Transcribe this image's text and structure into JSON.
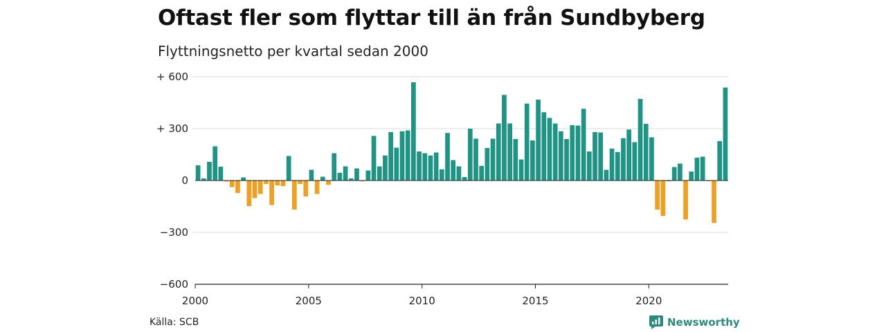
{
  "title": "Oftast fler som flyttar till än från Sundbyberg",
  "subtitle": "Flyttningsnetto per kvartal sedan 2000",
  "source": "Källa: SCB",
  "brand": "Newsworthy",
  "colors": {
    "positive": "#1e9484",
    "negative": "#f0a021",
    "grid": "#d9d9d9",
    "axis": "#222222",
    "brand": "#2a8c7e"
  },
  "chart_data": {
    "type": "bar",
    "ylim": [
      -600,
      600
    ],
    "y_ticks": [
      {
        "value": 600,
        "label": "+ 600"
      },
      {
        "value": 300,
        "label": "+ 300"
      },
      {
        "value": 0,
        "label": "0"
      },
      {
        "value": -300,
        "label": "−300"
      },
      {
        "value": -600,
        "label": "−600"
      }
    ],
    "x_ticks": [
      "2000",
      "2005",
      "2010",
      "2015",
      "2020"
    ],
    "start_year": 2000,
    "values": [
      88,
      12,
      108,
      198,
      80,
      -6,
      -38,
      -72,
      18,
      -148,
      -102,
      -78,
      -20,
      -142,
      -28,
      -32,
      142,
      -168,
      -20,
      -92,
      62,
      -78,
      22,
      -25,
      158,
      45,
      82,
      12,
      70,
      -5,
      58,
      258,
      82,
      145,
      280,
      190,
      285,
      290,
      568,
      168,
      158,
      145,
      162,
      65,
      275,
      118,
      82,
      20,
      300,
      242,
      85,
      188,
      242,
      330,
      495,
      330,
      240,
      122,
      445,
      232,
      468,
      395,
      362,
      330,
      285,
      240,
      320,
      318,
      415,
      168,
      280,
      278,
      62,
      185,
      165,
      245,
      295,
      222,
      472,
      328,
      250,
      -168,
      -205,
      0,
      78,
      98,
      -225,
      52,
      132,
      138,
      -4,
      -245,
      228,
      538
    ]
  }
}
